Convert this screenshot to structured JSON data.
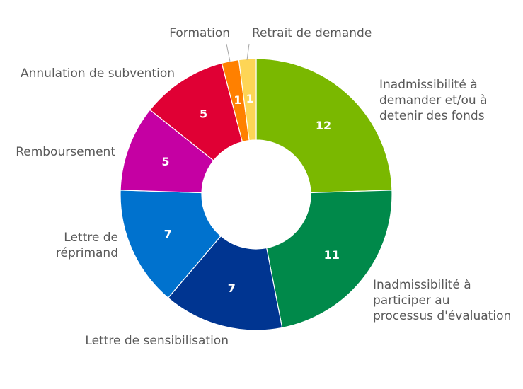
{
  "chart_data": {
    "type": "pie",
    "variant": "doughnut",
    "start_angle_deg": 0,
    "direction": "clockwise",
    "slices": [
      {
        "label": [
          "Inadmissibilité à",
          "demander et/ou à",
          "detenir des fonds"
        ],
        "value": 12,
        "color": "#7AB800"
      },
      {
        "label": [
          "Inadmissibilité à",
          "participer au",
          "processus d'évaluation"
        ],
        "value": 11,
        "color": "#00894A"
      },
      {
        "label": [
          "Lettre de sensibilisation"
        ],
        "value": 7,
        "color": "#003591"
      },
      {
        "label": [
          "Lettre de",
          "réprimand"
        ],
        "value": 7,
        "color": "#0072CE"
      },
      {
        "label": [
          "Remboursement"
        ],
        "value": 5,
        "color": "#C500A3"
      },
      {
        "label": [
          "Annulation de subvention"
        ],
        "value": 5,
        "color": "#E00034"
      },
      {
        "label": [
          "Formation"
        ],
        "value": 1,
        "color": "#FF8000"
      },
      {
        "label": [
          "Retrait de demande"
        ],
        "value": 1,
        "color": "#FDD556"
      }
    ],
    "value_label_color": "#FFFFFF",
    "category_label_color": "#595959",
    "legend": "none"
  }
}
